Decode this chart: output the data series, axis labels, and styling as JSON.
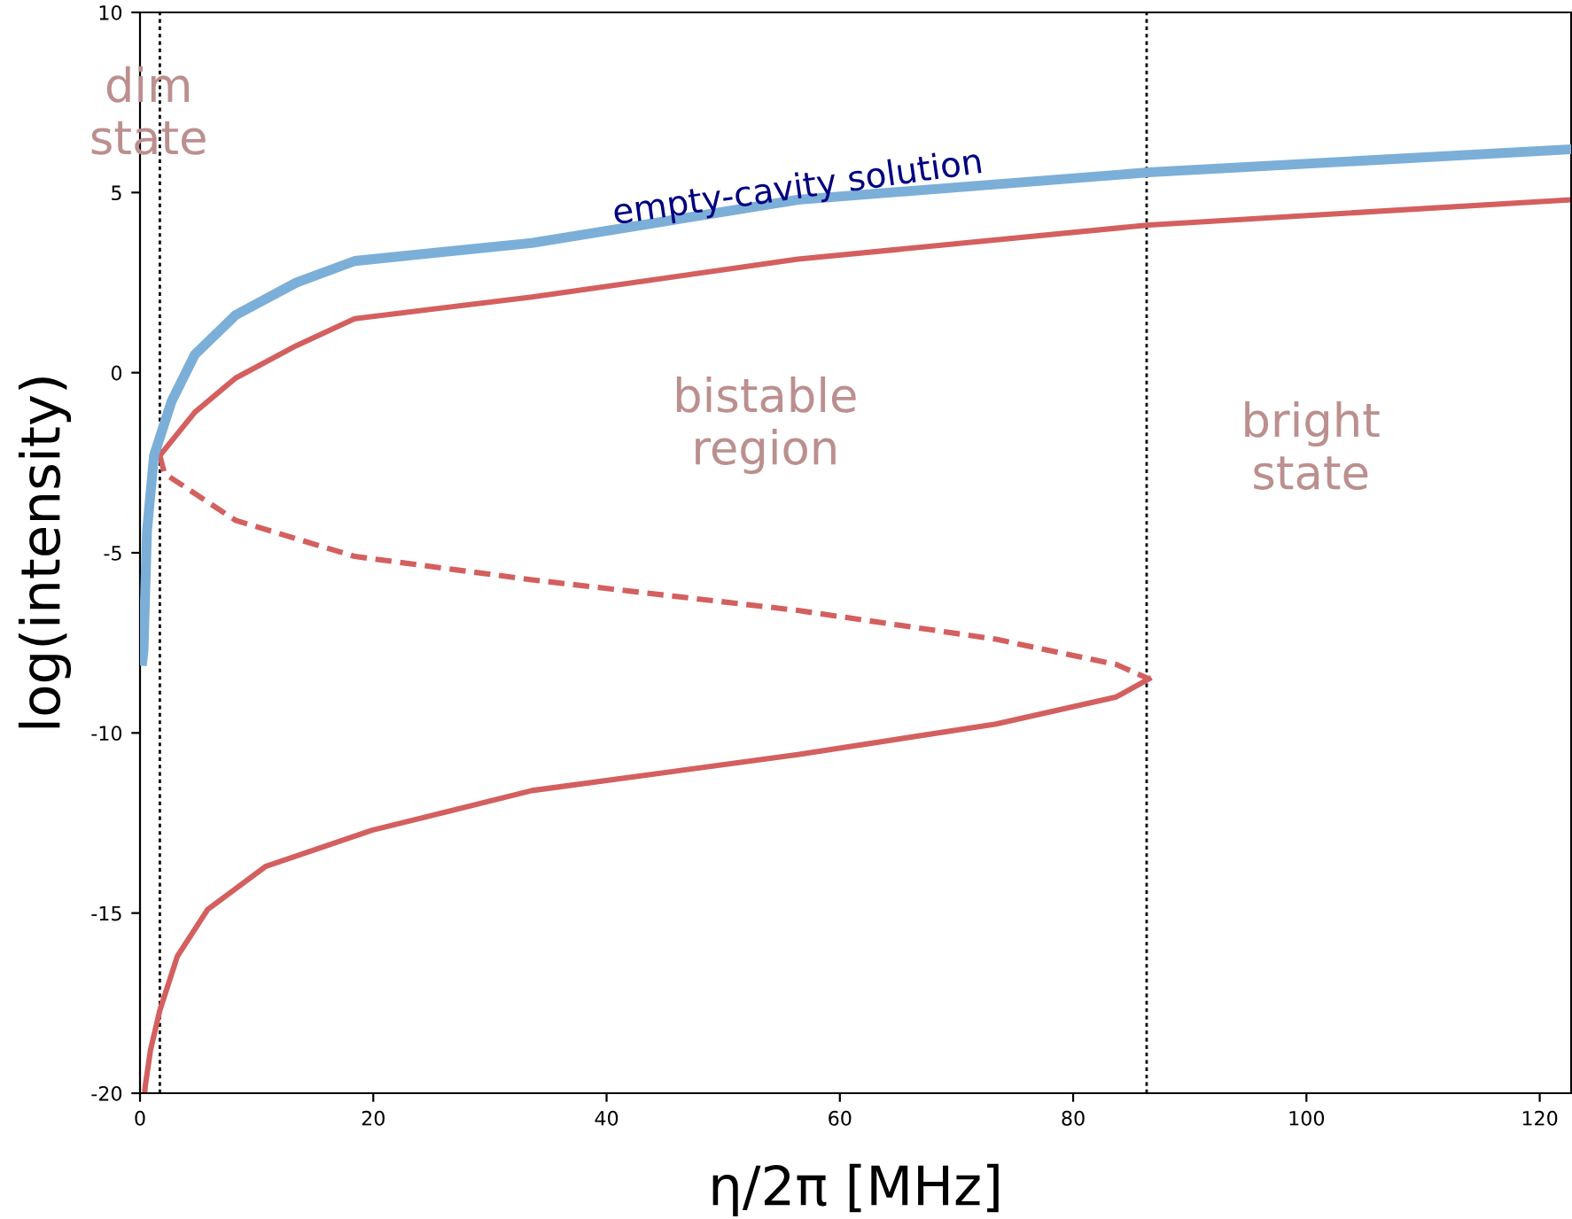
{
  "chart_data": {
    "type": "line",
    "xlabel": "η/2π [MHz]",
    "ylabel": "log(intensity)",
    "xlim": [
      0,
      122.7
    ],
    "ylim": [
      -20,
      10
    ],
    "xticks": [
      0,
      20,
      40,
      60,
      80,
      100,
      120
    ],
    "yticks": [
      -20,
      -15,
      -10,
      -5,
      0,
      5,
      10
    ],
    "grid": false,
    "legend": false,
    "series": [
      {
        "color": "#7bafd8",
        "line_style": "solid",
        "x": [
          0.2,
          0.3,
          0.6,
          1.2,
          2.7,
          4.7,
          8.2,
          13.4,
          18.4,
          33.6,
          56.4,
          86.5,
          122.7
        ],
        "values": [
          -8.0,
          -7.7,
          -4.4,
          -2.3,
          -0.8,
          0.5,
          1.6,
          2.5,
          3.1,
          3.6,
          4.8,
          5.56,
          6.2
        ]
      },
      {
        "color": "#d45f5f",
        "line_style": "solid",
        "x": [
          1.7,
          4.7,
          8.2,
          13.4,
          18.4,
          33.6,
          56.4,
          86.5,
          122.7
        ],
        "values": [
          -2.3,
          -1.1,
          -0.15,
          0.75,
          1.5,
          2.1,
          3.15,
          4.1,
          4.8
        ]
      },
      {
        "color": "#d45f5f",
        "line_style": "dashed",
        "x": [
          1.7,
          2.1,
          8.2,
          18.4,
          33.6,
          56.4,
          73.4,
          83.7,
          86.5
        ],
        "values": [
          -2.3,
          -2.8,
          -4.1,
          -5.1,
          -5.75,
          -6.6,
          -7.4,
          -8.1,
          -8.5
        ]
      },
      {
        "color": "#d45f5f",
        "line_style": "solid",
        "x": [
          86.5,
          83.7,
          73.4,
          56.4,
          33.6,
          19.9,
          10.8,
          5.8,
          3.2,
          1.7,
          0.9,
          0.45,
          0.4
        ],
        "values": [
          -8.5,
          -9.0,
          -9.75,
          -10.6,
          -11.6,
          -12.7,
          -13.7,
          -14.9,
          -16.2,
          -17.7,
          -18.8,
          -19.8,
          -20
        ]
      }
    ],
    "ref_lines": [
      {
        "axis": "x",
        "value": 1.7,
        "color": "#000000",
        "line_style": "dotted"
      },
      {
        "axis": "x",
        "value": 86.3,
        "color": "#000000",
        "line_style": "dotted"
      }
    ],
    "annotations": [
      {
        "text": "empty-cavity solution",
        "x": 56.4,
        "y": 5.1
      },
      "dim\nstate",
      "bistable\nregion",
      "bright\nstate"
    ]
  }
}
